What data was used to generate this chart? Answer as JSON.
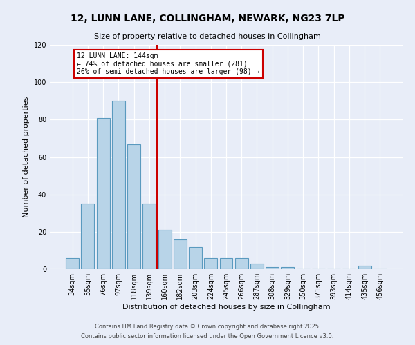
{
  "title": "12, LUNN LANE, COLLINGHAM, NEWARK, NG23 7LP",
  "subtitle": "Size of property relative to detached houses in Collingham",
  "xlabel": "Distribution of detached houses by size in Collingham",
  "ylabel": "Number of detached properties",
  "bar_labels": [
    "34sqm",
    "55sqm",
    "76sqm",
    "97sqm",
    "118sqm",
    "139sqm",
    "160sqm",
    "182sqm",
    "203sqm",
    "224sqm",
    "245sqm",
    "266sqm",
    "287sqm",
    "308sqm",
    "329sqm",
    "350sqm",
    "371sqm",
    "393sqm",
    "414sqm",
    "435sqm",
    "456sqm"
  ],
  "bar_values": [
    6,
    35,
    81,
    90,
    67,
    35,
    21,
    16,
    12,
    6,
    6,
    6,
    3,
    1,
    1,
    0,
    0,
    0,
    0,
    2,
    0
  ],
  "bar_color": "#b8d4e8",
  "bar_edge_color": "#5a9abf",
  "vline_x": 5.5,
  "vline_color": "#cc0000",
  "annotation_title": "12 LUNN LANE: 144sqm",
  "annotation_line1": "← 74% of detached houses are smaller (281)",
  "annotation_line2": "26% of semi-detached houses are larger (98) →",
  "annotation_box_facecolor": "#ffffff",
  "annotation_box_edgecolor": "#cc0000",
  "ylim": [
    0,
    120
  ],
  "yticks": [
    0,
    20,
    40,
    60,
    80,
    100,
    120
  ],
  "footnote1": "Contains HM Land Registry data © Crown copyright and database right 2025.",
  "footnote2": "Contains public sector information licensed under the Open Government Licence v3.0.",
  "bg_color": "#e8edf8",
  "plot_bg_color": "#e8edf8",
  "grid_color": "#ffffff",
  "title_fontsize": 10,
  "subtitle_fontsize": 8,
  "xlabel_fontsize": 8,
  "ylabel_fontsize": 8,
  "tick_fontsize": 7,
  "annotation_fontsize": 7,
  "footnote_fontsize": 6
}
